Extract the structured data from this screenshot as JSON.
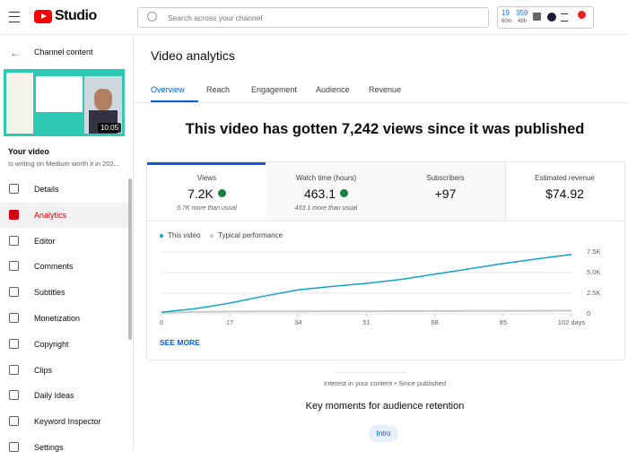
{
  "header": {
    "brand": "Studio",
    "search_placeholder": "Search across your channel",
    "stats": [
      {
        "value": "19",
        "unit": "60m"
      },
      {
        "value": "359",
        "unit": "48h"
      }
    ]
  },
  "sidebar": {
    "back_label": "Channel content",
    "duration": "10:05",
    "your_video": "Your video",
    "video_title": "Is writing on Medium worth it in 202...",
    "items": [
      "Details",
      "Analytics",
      "Editor",
      "Comments",
      "Subtitles",
      "Monetization",
      "Copyright",
      "Clips",
      "Daily Ideas",
      "Keyword Inspector",
      "Settings"
    ]
  },
  "main": {
    "title": "Video analytics",
    "tabs": [
      "Overview",
      "Reach",
      "Engagement",
      "Audience",
      "Revenue"
    ],
    "headline": "This video has gotten 7,242 views since it was published",
    "cards": [
      {
        "label": "Views",
        "value": "7.2K",
        "note": "6.7K more than usual"
      },
      {
        "label": "Watch time (hours)",
        "value": "463.1",
        "note": "433.1 more than usual"
      },
      {
        "label": "Subscribers",
        "value": "+97"
      },
      {
        "label": "Estimated revenue",
        "value": "$74.92"
      }
    ],
    "see_more": "SEE MORE",
    "interest": "Interest in your content • Since published",
    "key_moments": "Key moments for audience retention",
    "chip": "Intro"
  },
  "chart_data": {
    "type": "line",
    "x": [
      0,
      4,
      8,
      12,
      17,
      25,
      34,
      42,
      51,
      60,
      68,
      76,
      85,
      94,
      102
    ],
    "series": [
      {
        "name": "This video",
        "color": "#12a4c4",
        "values": [
          200,
          400,
          600,
          900,
          1300,
          2100,
          2900,
          3300,
          3700,
          4200,
          4800,
          5400,
          6100,
          6700,
          7200
        ]
      },
      {
        "name": "Typical performance",
        "color": "#c8c8c8",
        "values": [
          150,
          200,
          230,
          250,
          270,
          290,
          300,
          310,
          320,
          330,
          340,
          350,
          360,
          370,
          380
        ]
      }
    ],
    "xlim": [
      0,
      102
    ],
    "xticks": [
      0,
      17,
      34,
      51,
      68,
      85,
      {
        "value": 102,
        "label": "102 days"
      }
    ],
    "ylim": [
      0,
      7500
    ],
    "yticks": [
      0,
      {
        "value": 2500,
        "label": "2.5K"
      },
      {
        "value": 5000,
        "label": "5.0K"
      },
      {
        "value": 7500,
        "label": "7.5K"
      }
    ],
    "grid": true
  }
}
